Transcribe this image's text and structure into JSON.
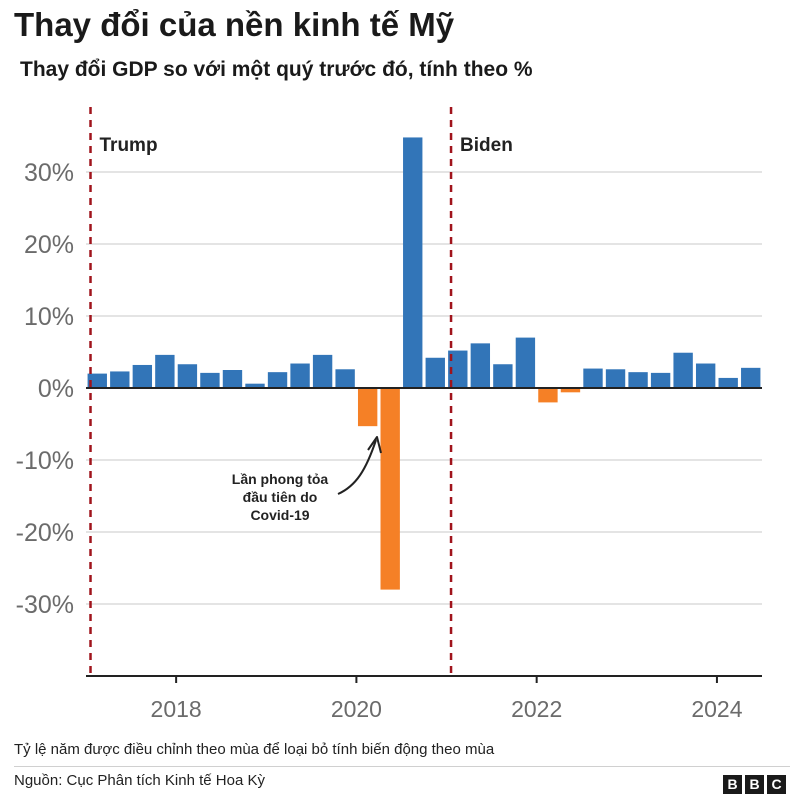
{
  "header": {
    "title": "Thay đổi của nền kinh tế Mỹ",
    "subtitle": "Thay đổi GDP so với một quý trước đó, tính theo %"
  },
  "footer": {
    "note": "Tỷ lệ năm được điều chỉnh theo mùa để loại bỏ tính biến động theo mùa",
    "source": "Nguồn: Cục Phân tích Kinh tế Hoa Kỳ",
    "logo_letters": [
      "B",
      "B",
      "C"
    ]
  },
  "colors": {
    "positive": "#3275b8",
    "negative": "#f58026",
    "marker": "#a0141c",
    "grid": "#dcdcdc",
    "axis": "#222222"
  },
  "chart_data": {
    "type": "bar",
    "ylim": [
      -40,
      36
    ],
    "yticks": [
      {
        "value": 30,
        "label": "30%"
      },
      {
        "value": 20,
        "label": "20%"
      },
      {
        "value": 10,
        "label": "10%"
      },
      {
        "value": 0,
        "label": "0%"
      },
      {
        "value": -10,
        "label": "-10%"
      },
      {
        "value": -20,
        "label": "-20%"
      },
      {
        "value": -30,
        "label": "-30%"
      }
    ],
    "xlim": [
      2017.0,
      2024.5
    ],
    "xticks": [
      {
        "value": 2018,
        "label": "2018"
      },
      {
        "value": 2020,
        "label": "2020"
      },
      {
        "value": 2022,
        "label": "2022"
      },
      {
        "value": 2024,
        "label": "2024"
      }
    ],
    "categories": [
      "2017 Q1",
      "2017 Q2",
      "2017 Q3",
      "2017 Q4",
      "2018 Q1",
      "2018 Q2",
      "2018 Q3",
      "2018 Q4",
      "2019 Q1",
      "2019 Q2",
      "2019 Q3",
      "2019 Q4",
      "2020 Q1",
      "2020 Q2",
      "2020 Q3",
      "2020 Q4",
      "2021 Q1",
      "2021 Q2",
      "2021 Q3",
      "2021 Q4",
      "2022 Q1",
      "2022 Q2",
      "2022 Q3",
      "2022 Q4",
      "2023 Q1",
      "2023 Q2",
      "2023 Q3",
      "2023 Q4",
      "2024 Q1",
      "2024 Q2"
    ],
    "values": [
      2.0,
      2.3,
      3.2,
      4.6,
      3.3,
      2.1,
      2.5,
      0.6,
      2.2,
      3.4,
      4.6,
      2.6,
      -5.3,
      -28.0,
      34.8,
      4.2,
      5.2,
      6.2,
      3.3,
      7.0,
      -2.0,
      -0.6,
      2.7,
      2.6,
      2.2,
      2.1,
      4.9,
      3.4,
      1.4,
      2.8
    ],
    "markers": [
      {
        "x": 2017.05,
        "label": "Trump"
      },
      {
        "x": 2021.05,
        "label": "Biden"
      }
    ],
    "annotation": {
      "lines": [
        "Lần phong tỏa",
        "đầu tiên do",
        "Covid-19"
      ]
    }
  }
}
